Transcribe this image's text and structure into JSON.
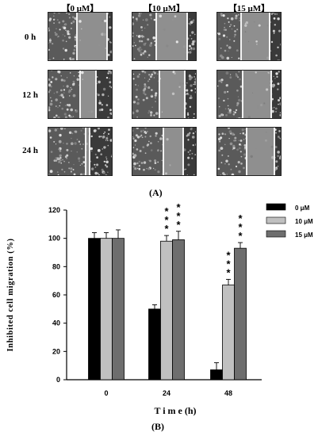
{
  "panel_a": {
    "label": "(A)",
    "columns": [
      "【0 μM】",
      "【10 μM】",
      "【15 μM】"
    ],
    "rows": [
      "0 h",
      "12 h",
      "24 h"
    ]
  },
  "panel_b": {
    "label": "(B)"
  },
  "chart_data": {
    "type": "bar",
    "xlabel": "T i m e  (h)",
    "ylabel": "Inhibited cell migration (%)",
    "categories": [
      "0",
      "24",
      "48"
    ],
    "ylim": [
      0,
      120
    ],
    "yticks": [
      "0",
      "20",
      "40",
      "60",
      "80",
      "100",
      "120"
    ],
    "series": [
      {
        "name": "0 μM",
        "color": "#000000",
        "values": [
          100,
          50,
          7
        ],
        "errors": [
          4,
          3,
          5
        ]
      },
      {
        "name": "10 μM",
        "color": "#c0c0c0",
        "values": [
          100,
          98,
          67
        ],
        "errors": [
          4,
          4,
          4
        ]
      },
      {
        "name": "15 μM",
        "color": "#6e6e6e",
        "values": [
          100,
          99,
          93
        ],
        "errors": [
          6,
          6,
          4
        ]
      }
    ],
    "significance": [
      {
        "category": "24",
        "series": "10 μM",
        "label": "***"
      },
      {
        "category": "24",
        "series": "15 μM",
        "label": "***"
      },
      {
        "category": "48",
        "series": "10 μM",
        "label": "***"
      },
      {
        "category": "48",
        "series": "15 μM",
        "label": "***"
      }
    ],
    "legend_position": "top-right",
    "grid": false
  }
}
